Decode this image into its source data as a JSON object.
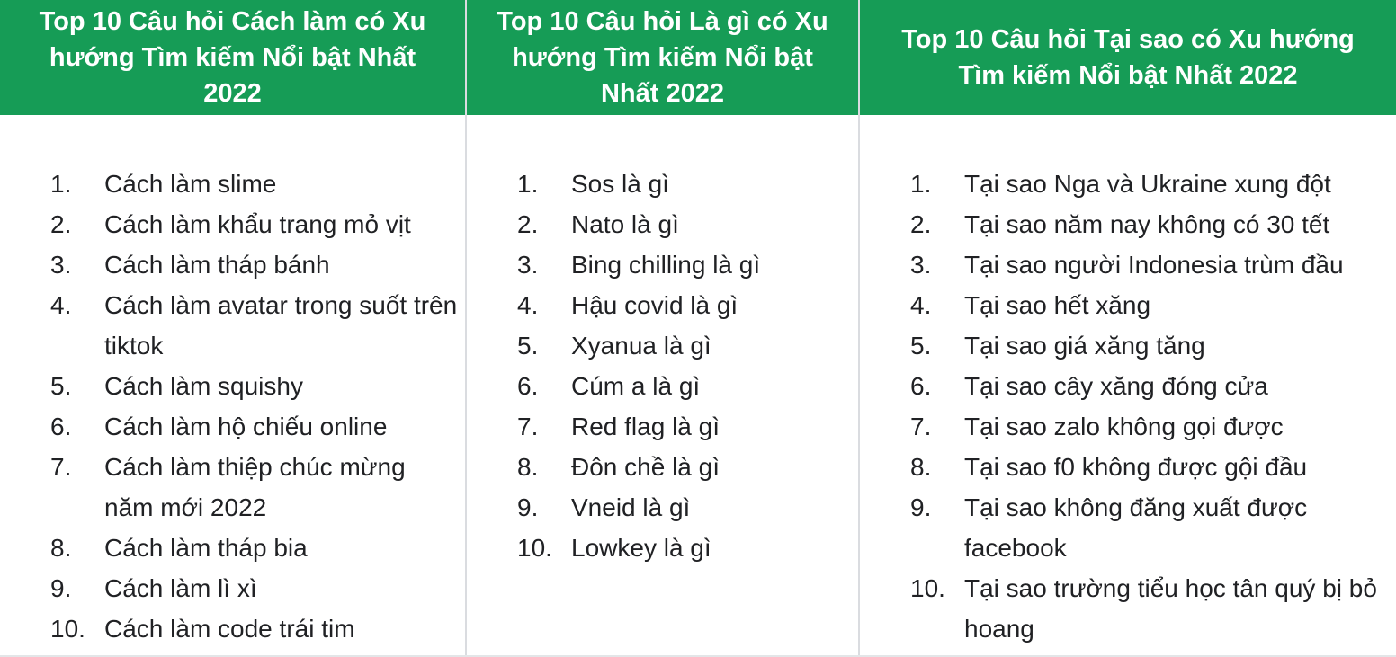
{
  "chart_data": {
    "type": "table",
    "title": "Top 10 trending search questions 2022 (Vietnam)",
    "columns": [
      {
        "header": "Top 10 Câu hỏi Cách làm có Xu hướng Tìm kiếm Nổi bật Nhất 2022",
        "items": [
          "Cách làm slime",
          "Cách làm khẩu trang mỏ vịt",
          "Cách làm tháp bánh",
          "Cách làm avatar trong suốt trên tiktok",
          "Cách làm squishy",
          "Cách làm hộ chiếu online",
          "Cách làm thiệp chúc mừng năm mới 2022",
          "Cách làm tháp bia",
          "Cách làm lì xì",
          "Cách làm code trái tim"
        ]
      },
      {
        "header": "Top 10 Câu hỏi Là gì có Xu hướng Tìm kiếm Nổi bật Nhất 2022",
        "items": [
          "Sos là gì",
          "Nato là gì",
          "Bing chilling là gì",
          "Hậu covid là gì",
          "Xyanua là gì",
          "Cúm a là gì",
          "Red flag là gì",
          "Đôn chề là gì",
          "Vneid là gì",
          "Lowkey là gì"
        ]
      },
      {
        "header": "Top 10 Câu hỏi Tại sao có Xu hướng Tìm kiếm Nổi bật Nhất 2022",
        "items": [
          "Tại sao Nga và Ukraine xung đột",
          "Tại sao năm nay không có 30 tết",
          "Tại sao người Indonesia trùm đầu",
          "Tại sao hết xăng",
          "Tại sao giá xăng tăng",
          "Tại sao cây xăng đóng cửa",
          "Tại sao zalo không gọi được",
          "Tại sao f0 không được gội đầu",
          "Tại sao không đăng xuất được facebook",
          "Tại sao trường tiểu học tân quý bị bỏ hoang"
        ]
      }
    ]
  },
  "ranks": [
    "1.",
    "2.",
    "3.",
    "4.",
    "5.",
    "6.",
    "7.",
    "8.",
    "9.",
    "10."
  ],
  "colors": {
    "header_bg": "#169c56",
    "header_text": "#ffffff",
    "body_text": "#202124",
    "divider": "#dadce0"
  }
}
